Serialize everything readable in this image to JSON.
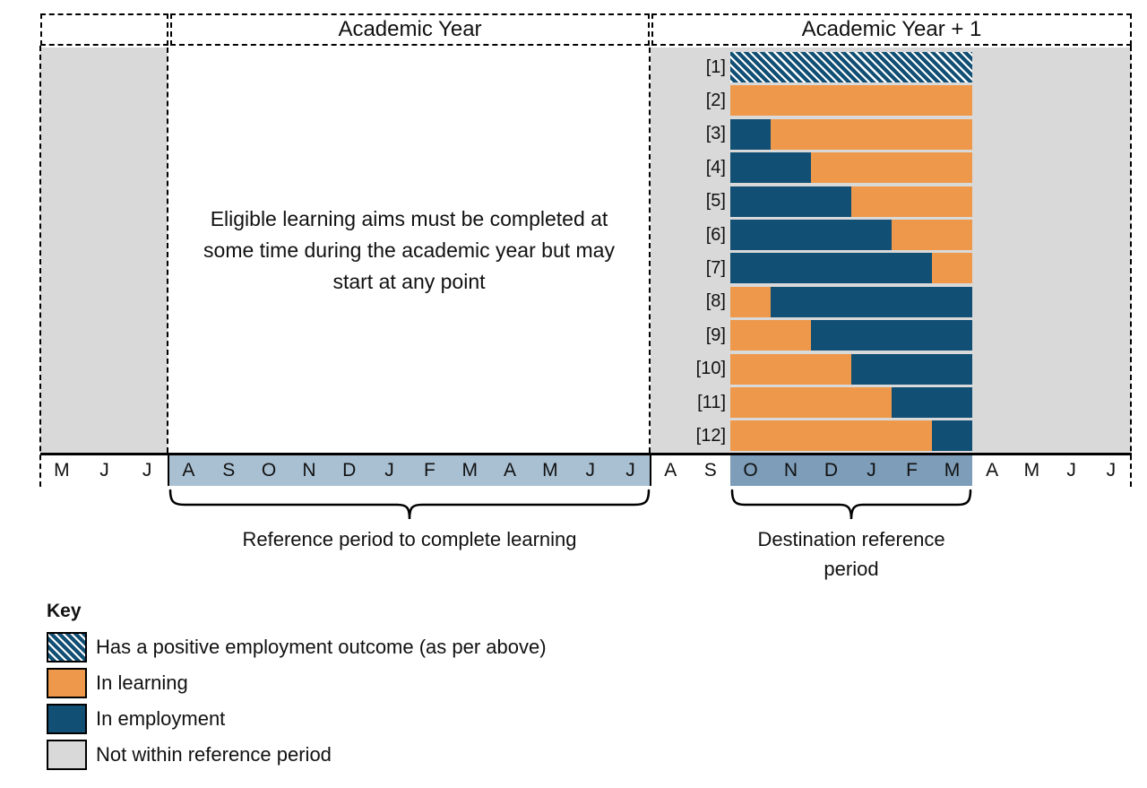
{
  "headers": {
    "spacer": "",
    "year1": "Academic Year",
    "year2": "Academic Year + 1"
  },
  "note_lines": [
    "Eligible learning aims must be completed at",
    "some time during the academic year but may",
    "start at any point"
  ],
  "axis": {
    "groups": [
      {
        "name": "pre-academic-year",
        "band": "none",
        "months": [
          "M",
          "J",
          "J"
        ]
      },
      {
        "name": "academic-year-reference-period",
        "band": "light",
        "months": [
          "A",
          "S",
          "O",
          "N",
          "D",
          "J",
          "F",
          "M",
          "A",
          "M",
          "J",
          "J"
        ]
      },
      {
        "name": "pre-destination",
        "band": "none",
        "months": [
          "A",
          "S"
        ]
      },
      {
        "name": "destination-reference-period",
        "band": "dark",
        "months": [
          "O",
          "N",
          "D",
          "J",
          "F",
          "M"
        ]
      },
      {
        "name": "post-destination",
        "band": "none",
        "months": [
          "A",
          "M",
          "J",
          "J"
        ]
      }
    ]
  },
  "braces": {
    "reference_label": "Reference period to complete learning",
    "destination_label_lines": [
      "Destination reference",
      "period"
    ]
  },
  "chart_data": {
    "type": "bar",
    "subtype": "horizontal-timeline-scenarios",
    "title": "",
    "unit": "months",
    "destination_window_months": [
      "O",
      "N",
      "D",
      "J",
      "F",
      "M"
    ],
    "window_length_months": 6,
    "rows": [
      {
        "label": "[1]",
        "segments": [
          {
            "state": "positive_employment_outcome",
            "months": 6
          }
        ]
      },
      {
        "label": "[2]",
        "segments": [
          {
            "state": "in_learning",
            "months": 6
          }
        ]
      },
      {
        "label": "[3]",
        "segments": [
          {
            "state": "in_employment",
            "months": 1
          },
          {
            "state": "in_learning",
            "months": 5
          }
        ]
      },
      {
        "label": "[4]",
        "segments": [
          {
            "state": "in_employment",
            "months": 2
          },
          {
            "state": "in_learning",
            "months": 4
          }
        ]
      },
      {
        "label": "[5]",
        "segments": [
          {
            "state": "in_employment",
            "months": 3
          },
          {
            "state": "in_learning",
            "months": 3
          }
        ]
      },
      {
        "label": "[6]",
        "segments": [
          {
            "state": "in_employment",
            "months": 4
          },
          {
            "state": "in_learning",
            "months": 2
          }
        ]
      },
      {
        "label": "[7]",
        "segments": [
          {
            "state": "in_employment",
            "months": 5
          },
          {
            "state": "in_learning",
            "months": 1
          }
        ]
      },
      {
        "label": "[8]",
        "segments": [
          {
            "state": "in_learning",
            "months": 1
          },
          {
            "state": "in_employment",
            "months": 5
          }
        ]
      },
      {
        "label": "[9]",
        "segments": [
          {
            "state": "in_learning",
            "months": 2
          },
          {
            "state": "in_employment",
            "months": 4
          }
        ]
      },
      {
        "label": "[10]",
        "segments": [
          {
            "state": "in_learning",
            "months": 3
          },
          {
            "state": "in_employment",
            "months": 3
          }
        ]
      },
      {
        "label": "[11]",
        "segments": [
          {
            "state": "in_learning",
            "months": 4
          },
          {
            "state": "in_employment",
            "months": 2
          }
        ]
      },
      {
        "label": "[12]",
        "segments": [
          {
            "state": "in_learning",
            "months": 5
          },
          {
            "state": "in_employment",
            "months": 1
          }
        ]
      }
    ]
  },
  "legend": {
    "title": "Key",
    "items": [
      {
        "state": "positive_employment_outcome",
        "label": "Has a positive employment outcome (as per above)"
      },
      {
        "state": "in_learning",
        "label": "In learning"
      },
      {
        "state": "in_employment",
        "label": "In employment"
      },
      {
        "state": "not_within_reference_period",
        "label": "Not within reference period"
      }
    ]
  },
  "colors": {
    "in_learning": "#EE984B",
    "in_employment": "#114F74",
    "not_within_reference_period": "#D9D9D9",
    "reference_band_light": "#A9C0D2",
    "destination_band_dark": "#7D9DB9",
    "hatch_stripe": "#FFFFFF"
  }
}
